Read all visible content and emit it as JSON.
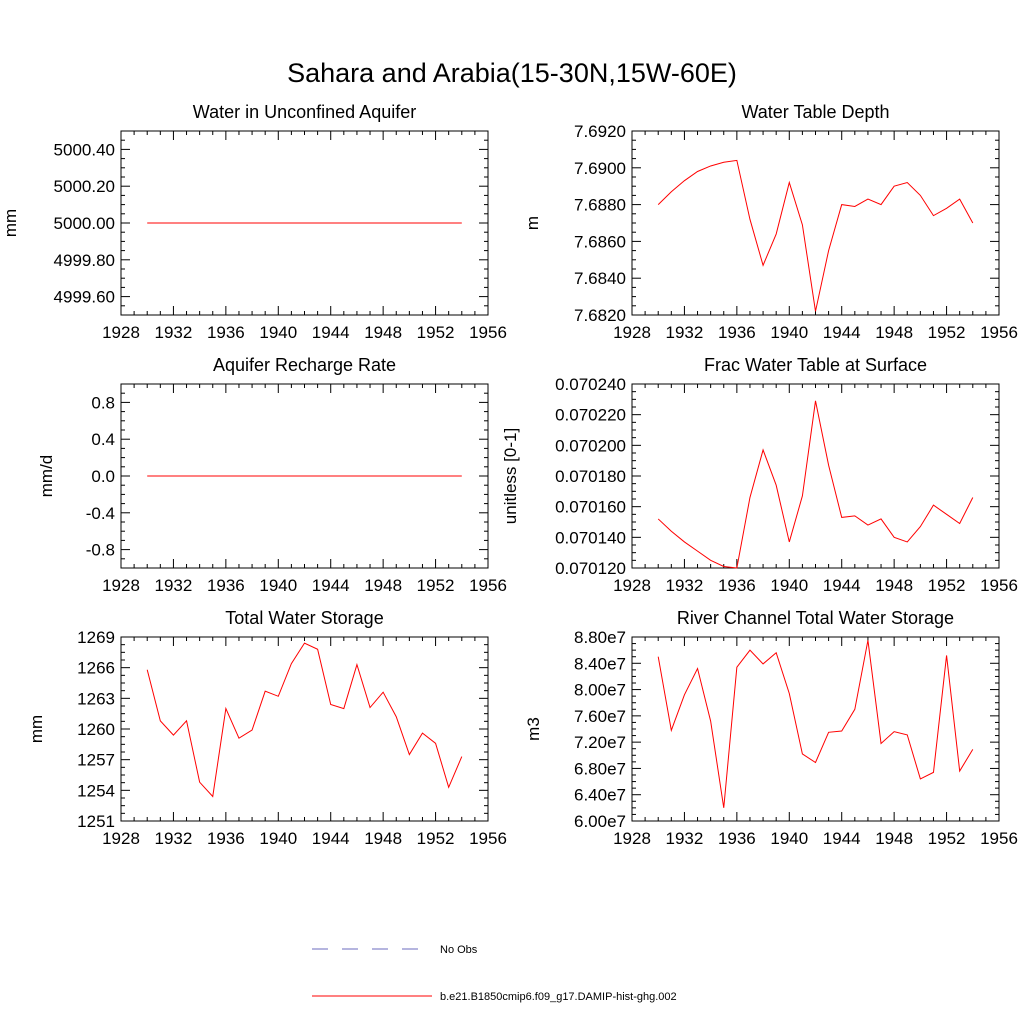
{
  "page_title": "Sahara and Arabia(15-30N,15W-60E)",
  "colors": {
    "model": "#ff0000",
    "obs": "#6b6bbf"
  },
  "legend": [
    {
      "label": "No Obs",
      "style": "dashed",
      "color": "#6b6bbf"
    },
    {
      "label": "b.e21.B1850cmip6.f09_g17.DAMIP-hist-ghg.002",
      "style": "solid",
      "color": "#ff0000"
    }
  ],
  "chart_data": [
    {
      "type": "line",
      "title": "Water in Unconfined Aquifer",
      "xlabel": "",
      "ylabel": "mm",
      "xlim": [
        1928,
        1956
      ],
      "ylim": [
        4999.5,
        5000.5
      ],
      "xticks": [
        1928,
        1932,
        1936,
        1940,
        1944,
        1948,
        1952,
        1956
      ],
      "yticks": [
        {
          "v": 4999.6,
          "t": "4999.60"
        },
        {
          "v": 4999.8,
          "t": "4999.80"
        },
        {
          "v": 5000.0,
          "t": "5000.00"
        },
        {
          "v": 5000.2,
          "t": "5000.20"
        },
        {
          "v": 5000.4,
          "t": "5000.40"
        }
      ],
      "x": [
        1930,
        1931,
        1932,
        1933,
        1934,
        1935,
        1936,
        1937,
        1938,
        1939,
        1940,
        1941,
        1942,
        1943,
        1944,
        1945,
        1946,
        1947,
        1948,
        1949,
        1950,
        1951,
        1952,
        1953,
        1954
      ],
      "y": [
        5000,
        5000,
        5000,
        5000,
        5000,
        5000,
        5000,
        5000,
        5000,
        5000,
        5000,
        5000,
        5000,
        5000,
        5000,
        5000,
        5000,
        5000,
        5000,
        5000,
        5000,
        5000,
        5000,
        5000,
        5000
      ]
    },
    {
      "type": "line",
      "title": "Water Table Depth",
      "xlabel": "",
      "ylabel": "m",
      "xlim": [
        1928,
        1956
      ],
      "ylim": [
        7.682,
        7.692
      ],
      "xticks": [
        1928,
        1932,
        1936,
        1940,
        1944,
        1948,
        1952,
        1956
      ],
      "yticks": [
        {
          "v": 7.682,
          "t": "7.6820"
        },
        {
          "v": 7.684,
          "t": "7.6840"
        },
        {
          "v": 7.686,
          "t": "7.6860"
        },
        {
          "v": 7.688,
          "t": "7.6880"
        },
        {
          "v": 7.69,
          "t": "7.6900"
        },
        {
          "v": 7.692,
          "t": "7.6920"
        }
      ],
      "x": [
        1930,
        1931,
        1932,
        1933,
        1934,
        1935,
        1936,
        1937,
        1938,
        1939,
        1940,
        1941,
        1942,
        1943,
        1944,
        1945,
        1946,
        1947,
        1948,
        1949,
        1950,
        1951,
        1952,
        1953,
        1954
      ],
      "y": [
        7.688,
        7.6887,
        7.6893,
        7.6898,
        7.6901,
        7.6903,
        7.6904,
        7.6872,
        7.6847,
        7.6864,
        7.6892,
        7.6869,
        7.6822,
        7.6855,
        7.688,
        7.6879,
        7.6883,
        7.688,
        7.689,
        7.6892,
        7.6885,
        7.6874,
        7.6878,
        7.6883,
        7.687
      ]
    },
    {
      "type": "line",
      "title": "Aquifer Recharge Rate",
      "xlabel": "",
      "ylabel": "mm/d",
      "xlim": [
        1928,
        1956
      ],
      "ylim": [
        -1.0,
        1.0
      ],
      "xticks": [
        1928,
        1932,
        1936,
        1940,
        1944,
        1948,
        1952,
        1956
      ],
      "yticks": [
        {
          "v": -0.8,
          "t": "-0.8"
        },
        {
          "v": -0.4,
          "t": "-0.4"
        },
        {
          "v": 0.0,
          "t": "0.0"
        },
        {
          "v": 0.4,
          "t": "0.4"
        },
        {
          "v": 0.8,
          "t": "0.8"
        }
      ],
      "x": [
        1930,
        1931,
        1932,
        1933,
        1934,
        1935,
        1936,
        1937,
        1938,
        1939,
        1940,
        1941,
        1942,
        1943,
        1944,
        1945,
        1946,
        1947,
        1948,
        1949,
        1950,
        1951,
        1952,
        1953,
        1954
      ],
      "y": [
        0,
        0,
        0,
        0,
        0,
        0,
        0,
        0,
        0,
        0,
        0,
        0,
        0,
        0,
        0,
        0,
        0,
        0,
        0,
        0,
        0,
        0,
        0,
        0,
        0
      ]
    },
    {
      "type": "line",
      "title": "Frac Water Table at Surface",
      "xlabel": "",
      "ylabel": "unitless [0-1]",
      "xlim": [
        1928,
        1956
      ],
      "ylim": [
        0.07012,
        0.07024
      ],
      "xticks": [
        1928,
        1932,
        1936,
        1940,
        1944,
        1948,
        1952,
        1956
      ],
      "yticks": [
        {
          "v": 0.07012,
          "t": "0.070120"
        },
        {
          "v": 0.07014,
          "t": "0.070140"
        },
        {
          "v": 0.07016,
          "t": "0.070160"
        },
        {
          "v": 0.07018,
          "t": "0.070180"
        },
        {
          "v": 0.0702,
          "t": "0.070200"
        },
        {
          "v": 0.07022,
          "t": "0.070220"
        },
        {
          "v": 0.07024,
          "t": "0.070240"
        }
      ],
      "x": [
        1930,
        1931,
        1932,
        1933,
        1934,
        1935,
        1936,
        1937,
        1938,
        1939,
        1940,
        1941,
        1942,
        1943,
        1944,
        1945,
        1946,
        1947,
        1948,
        1949,
        1950,
        1951,
        1952,
        1953,
        1954
      ],
      "y": [
        0.070152,
        0.070144,
        0.070137,
        0.070131,
        0.070125,
        0.070121,
        0.07012,
        0.070166,
        0.070197,
        0.070174,
        0.070137,
        0.070167,
        0.070229,
        0.070187,
        0.070153,
        0.070154,
        0.070148,
        0.070152,
        0.07014,
        0.070137,
        0.070147,
        0.070161,
        0.070155,
        0.070149,
        0.070166
      ]
    },
    {
      "type": "line",
      "title": "Total Water Storage",
      "xlabel": "",
      "ylabel": "mm",
      "xlim": [
        1928,
        1956
      ],
      "ylim": [
        1251,
        1269
      ],
      "xticks": [
        1928,
        1932,
        1936,
        1940,
        1944,
        1948,
        1952,
        1956
      ],
      "yticks": [
        {
          "v": 1251,
          "t": "1251"
        },
        {
          "v": 1254,
          "t": "1254"
        },
        {
          "v": 1257,
          "t": "1257"
        },
        {
          "v": 1260,
          "t": "1260"
        },
        {
          "v": 1263,
          "t": "1263"
        },
        {
          "v": 1266,
          "t": "1266"
        },
        {
          "v": 1269,
          "t": "1269"
        }
      ],
      "x": [
        1930,
        1931,
        1932,
        1933,
        1934,
        1935,
        1936,
        1937,
        1938,
        1939,
        1940,
        1941,
        1942,
        1943,
        1944,
        1945,
        1946,
        1947,
        1948,
        1949,
        1950,
        1951,
        1952,
        1953,
        1954
      ],
      "y": [
        1265.8,
        1260.8,
        1259.4,
        1260.8,
        1254.8,
        1253.4,
        1262.0,
        1259.1,
        1259.9,
        1263.7,
        1263.2,
        1266.4,
        1268.4,
        1267.8,
        1262.4,
        1262.0,
        1266.3,
        1262.1,
        1263.6,
        1261.2,
        1257.5,
        1259.6,
        1258.6,
        1254.3,
        1257.3
      ]
    },
    {
      "type": "line",
      "title": "River Channel Total Water Storage",
      "xlabel": "",
      "ylabel": "m3",
      "xlim": [
        1928,
        1956
      ],
      "ylim": [
        60000000,
        88000000
      ],
      "xticks": [
        1928,
        1932,
        1936,
        1940,
        1944,
        1948,
        1952,
        1956
      ],
      "yticks": [
        {
          "v": 60000000,
          "t": "6.00e7"
        },
        {
          "v": 64000000,
          "t": "6.40e7"
        },
        {
          "v": 68000000,
          "t": "6.80e7"
        },
        {
          "v": 72000000,
          "t": "7.20e7"
        },
        {
          "v": 76000000,
          "t": "7.60e7"
        },
        {
          "v": 80000000,
          "t": "8.00e7"
        },
        {
          "v": 84000000,
          "t": "8.40e7"
        },
        {
          "v": 88000000,
          "t": "8.80e7"
        }
      ],
      "x": [
        1930,
        1931,
        1932,
        1933,
        1934,
        1935,
        1936,
        1937,
        1938,
        1939,
        1940,
        1941,
        1942,
        1943,
        1944,
        1945,
        1946,
        1947,
        1948,
        1949,
        1950,
        1951,
        1952,
        1953,
        1954
      ],
      "y": [
        85000000,
        73800000,
        79200000,
        83200000,
        75200000,
        62000000,
        83400000,
        86000000,
        83900000,
        85600000,
        79400000,
        70200000,
        68900000,
        73500000,
        73700000,
        77000000,
        87500000,
        71800000,
        73600000,
        73100000,
        66400000,
        67400000,
        85200000,
        67600000,
        70900000
      ]
    }
  ]
}
